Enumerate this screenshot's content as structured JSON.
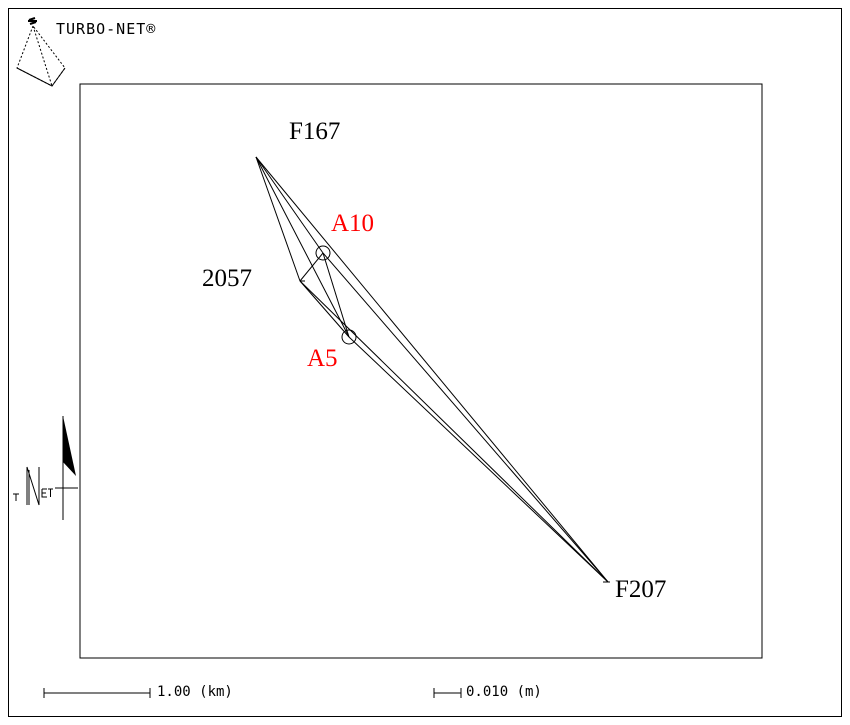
{
  "header": {
    "brand": "TURBO-NET®"
  },
  "stations": {
    "F167": {
      "label": "F167",
      "color": "#000000"
    },
    "F207": {
      "label": "F207",
      "color": "#000000"
    },
    "s2057": {
      "label": "2057",
      "color": "#000000"
    },
    "A10": {
      "label": "A10",
      "color": "#ff0000"
    },
    "A5": {
      "label": "A5",
      "color": "#ff0000"
    }
  },
  "scales": {
    "distance": "1.00 (km)",
    "error": "0.010 (m)"
  },
  "north_arrow": {
    "logo_text": "TNET"
  }
}
